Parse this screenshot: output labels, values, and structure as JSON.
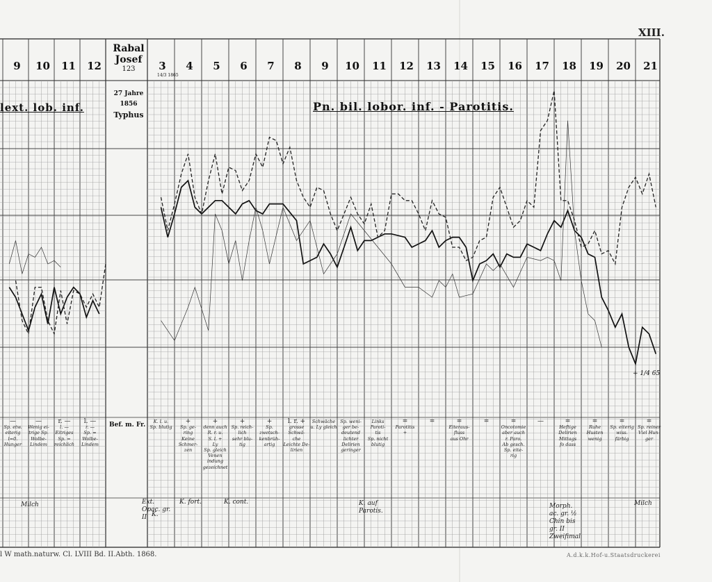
{
  "plate": {
    "number": "XIII.",
    "footer_left": "l W math.naturw. Cl. LVIII Bd. II.Abth. 1868.",
    "footer_right": "A.d.k.k.Hof-u.Staatsdruckerei"
  },
  "patient": {
    "name": "Rabal Josef",
    "number": "123",
    "age": "27 Jahre",
    "year": "1856",
    "disease": "Typhus",
    "first_day_label": "3",
    "first_day_sub": "14/3 1865"
  },
  "diagnosis": {
    "left": "lext. lob. inf.",
    "main": "Pn. bil. lobor. inf. - Parotitis."
  },
  "bef_label": "Bef. m. Fr.",
  "chart_data": {
    "type": "line",
    "title": "",
    "xlabel": "",
    "ylabel": "",
    "day_labels_left": [
      "9",
      "10",
      "11",
      "12"
    ],
    "day_labels_right": [
      "3",
      "4",
      "5",
      "6",
      "7",
      "8",
      "9",
      "10",
      "11",
      "12",
      "13",
      "14",
      "15",
      "16",
      "17",
      "18",
      "19",
      "20",
      "21"
    ],
    "ylim": [
      0,
      1
    ],
    "y_note": "vertical axis unlabeled; values as fraction of plot height (0 = bottom, 1 = top)",
    "series": [
      {
        "style": "solid",
        "x": [
          3.0,
          3.25,
          3.5,
          3.75,
          4.0,
          4.25,
          4.5,
          4.75,
          5.0,
          5.25,
          5.5,
          5.75,
          6.0,
          6.25,
          6.5,
          6.75,
          7.0,
          7.5,
          8.0,
          8.25,
          8.5,
          8.75,
          9.0,
          9.25,
          9.5,
          9.75,
          10.0,
          10.25,
          10.5,
          10.75,
          11.0,
          11.25,
          11.5,
          12.0,
          12.25,
          12.5,
          12.75,
          13.0,
          13.25,
          13.5,
          13.75,
          14.0,
          14.25,
          14.5,
          14.75,
          15.0,
          15.25,
          15.5,
          15.75,
          16.0,
          16.25,
          16.5,
          16.75,
          17.0,
          17.25,
          17.5,
          17.75,
          18.0,
          18.25,
          18.5,
          18.75,
          19.0,
          19.25,
          19.5,
          19.75,
          20.0,
          20.25,
          20.5,
          20.75,
          21.0,
          21.25
        ],
        "y": [
          0.62,
          0.53,
          0.6,
          0.68,
          0.7,
          0.62,
          0.6,
          0.62,
          0.64,
          0.64,
          0.62,
          0.6,
          0.63,
          0.64,
          0.61,
          0.6,
          0.63,
          0.63,
          0.58,
          0.45,
          0.46,
          0.47,
          0.51,
          0.48,
          0.44,
          0.5,
          0.56,
          0.49,
          0.52,
          0.52,
          0.53,
          0.54,
          0.54,
          0.53,
          0.5,
          0.51,
          0.52,
          0.55,
          0.5,
          0.52,
          0.53,
          0.53,
          0.5,
          0.4,
          0.45,
          0.46,
          0.48,
          0.44,
          0.48,
          0.47,
          0.47,
          0.51,
          0.5,
          0.49,
          0.54,
          0.58,
          0.56,
          0.61,
          0.55,
          0.53,
          0.48,
          0.47,
          0.35,
          0.31,
          0.26,
          0.3,
          0.2,
          0.15,
          0.26,
          0.24,
          0.18
        ]
      },
      {
        "style": "dashed",
        "x": [
          3.0,
          3.25,
          3.5,
          3.75,
          4.0,
          4.25,
          4.5,
          4.75,
          5.0,
          5.25,
          5.5,
          5.75,
          6.0,
          6.25,
          6.5,
          6.75,
          7.0,
          7.25,
          7.5,
          7.75,
          8.0,
          8.25,
          8.5,
          8.75,
          9.0,
          9.25,
          9.5,
          9.75,
          10.0,
          10.25,
          10.5,
          10.75,
          11.0,
          11.25,
          11.5,
          11.75,
          12.0,
          12.25,
          12.5,
          12.75,
          13.0,
          13.25,
          13.5,
          13.75,
          14.0,
          14.25,
          14.5,
          14.75,
          15.0,
          15.25,
          15.5,
          15.75,
          16.0,
          16.25,
          16.5,
          16.75,
          17.0,
          17.25,
          17.5,
          17.75,
          18.0,
          18.25,
          18.5,
          18.75,
          19.0,
          19.25,
          19.5,
          19.75,
          20.0,
          20.25,
          20.5,
          20.75,
          21.0,
          21.25
        ],
        "y": [
          0.65,
          0.55,
          0.63,
          0.72,
          0.78,
          0.65,
          0.6,
          0.7,
          0.78,
          0.66,
          0.74,
          0.73,
          0.67,
          0.7,
          0.78,
          0.74,
          0.83,
          0.82,
          0.75,
          0.8,
          0.7,
          0.65,
          0.62,
          0.68,
          0.67,
          0.6,
          0.55,
          0.6,
          0.65,
          0.6,
          0.57,
          0.63,
          0.53,
          0.55,
          0.66,
          0.66,
          0.64,
          0.64,
          0.6,
          0.55,
          0.64,
          0.6,
          0.59,
          0.5,
          0.5,
          0.46,
          0.47,
          0.52,
          0.53,
          0.65,
          0.68,
          0.62,
          0.56,
          0.58,
          0.64,
          0.62,
          0.85,
          0.88,
          0.97,
          0.64,
          0.64,
          0.58,
          0.5,
          0.51,
          0.55,
          0.48,
          0.49,
          0.45,
          0.62,
          0.68,
          0.71,
          0.66,
          0.72,
          0.62
        ]
      },
      {
        "style": "thin",
        "x": [
          3.0,
          3.5,
          4.0,
          4.25,
          4.75,
          5.0,
          5.25,
          5.5,
          5.75,
          6.0,
          6.25,
          6.5,
          6.75,
          7.0,
          7.5,
          8.0,
          8.5,
          9.0,
          9.5,
          10.0,
          10.5,
          11.0,
          11.5,
          12.0,
          12.25,
          12.5,
          13.0,
          13.25,
          13.5,
          13.75,
          14.0,
          14.5,
          15.0,
          15.25,
          15.5,
          16.0,
          16.5,
          17.0,
          17.25,
          17.5,
          17.75,
          18.0,
          18.25,
          18.5,
          18.75,
          19.0,
          19.25
        ],
        "y": [
          0.28,
          0.22,
          0.32,
          0.38,
          0.25,
          0.6,
          0.55,
          0.45,
          0.52,
          0.4,
          0.52,
          0.62,
          0.55,
          0.45,
          0.62,
          0.52,
          0.58,
          0.42,
          0.48,
          0.6,
          0.55,
          0.5,
          0.45,
          0.38,
          0.38,
          0.38,
          0.35,
          0.4,
          0.38,
          0.42,
          0.35,
          0.36,
          0.45,
          0.43,
          0.45,
          0.38,
          0.47,
          0.46,
          0.47,
          0.46,
          0.4,
          0.88,
          0.55,
          0.4,
          0.3,
          0.28,
          0.2
        ]
      }
    ],
    "left_series": [
      {
        "style": "solid",
        "x": [
          8.75,
          9.0,
          9.25,
          9.5,
          9.75,
          10.0,
          10.25,
          10.5,
          10.75,
          11.0,
          11.25,
          11.5,
          11.75,
          12.0,
          12.25
        ],
        "y": [
          0.38,
          0.35,
          0.3,
          0.25,
          0.32,
          0.36,
          0.27,
          0.38,
          0.3,
          0.35,
          0.38,
          0.36,
          0.29,
          0.34,
          0.3
        ]
      },
      {
        "style": "dashed",
        "x": [
          9.0,
          9.25,
          9.5,
          9.75,
          10.0,
          10.25,
          10.5,
          10.75,
          11.0,
          11.25,
          11.5,
          11.75,
          12.0,
          12.25,
          12.5
        ],
        "y": [
          0.4,
          0.28,
          0.24,
          0.38,
          0.38,
          0.28,
          0.24,
          0.37,
          0.27,
          0.37,
          0.36,
          0.32,
          0.36,
          0.32,
          0.45
        ]
      },
      {
        "style": "thin",
        "x": [
          8.75,
          9.0,
          9.25,
          9.5,
          9.75,
          10.0,
          10.25,
          10.5,
          10.75
        ],
        "y": [
          0.45,
          0.52,
          0.42,
          0.48,
          0.47,
          0.5,
          0.45,
          0.46,
          0.44
        ]
      }
    ],
    "end_annotation": "+ 1/4 65"
  },
  "chart_annotations": [
    {
      "text": "Pn. bil. lobor. inf. - Parotitis.",
      "kind": "diagnosis"
    }
  ],
  "notes": [
    {
      "col": 4,
      "mark": "",
      "lines": [
        "K. l. u.",
        "Sp. blutig"
      ]
    },
    {
      "col": 5,
      "mark": "+",
      "lines": [
        "Sp. ge-",
        "ring",
        "Keine",
        "Schmer-",
        "zen"
      ]
    },
    {
      "col": 6,
      "mark": "+",
      "lines": [
        "denn auch",
        "R. r. u.",
        "S. l. +",
        "Ly",
        "Sp. gleich",
        "Venen",
        "indung",
        "gezeichnet"
      ]
    },
    {
      "col": 7,
      "mark": "+",
      "lines": [
        "Sp. reich-",
        "lich",
        "sehr blu-",
        "tig"
      ]
    },
    {
      "col": 8,
      "mark": "+",
      "lines": [
        "Sp. zwetsch-",
        "kenbrüh-",
        "artig"
      ]
    },
    {
      "col": 9,
      "mark": "l. r. +",
      "lines": [
        "grosse",
        "Schwä-",
        "che",
        "Leichte De-",
        "lirien"
      ]
    },
    {
      "col": 10,
      "mark": "",
      "lines": [
        "Schwäche",
        "u. Ly gleich"
      ]
    },
    {
      "col": 11,
      "mark": "",
      "lines": [
        "Sp. weni-",
        "ger be-",
        "deutend",
        "lichter",
        "Delirien",
        "geringer"
      ]
    },
    {
      "col": 12,
      "mark": "",
      "lines": [
        "Links",
        "Paroti-",
        "tis",
        "Sp. nicht",
        "blutig"
      ]
    },
    {
      "col": 13,
      "mark": "=",
      "lines": [
        "Parotitis",
        "+"
      ]
    },
    {
      "col": 14,
      "mark": "=",
      "lines": []
    },
    {
      "col": 15,
      "mark": "=",
      "lines": [
        "Eiteraus-",
        "fluss",
        "aus Ohr"
      ]
    },
    {
      "col": 16,
      "mark": "=",
      "lines": []
    },
    {
      "col": 17,
      "mark": "=",
      "lines": [
        "Oncotomie",
        "aber auch",
        "r. Paro.",
        "Ab gesch.",
        "Sp. eite-",
        "rig"
      ]
    },
    {
      "col": 18,
      "mark": "—",
      "lines": []
    },
    {
      "col": 19,
      "mark": "=",
      "lines": [
        "Heftige",
        "Delirien",
        "Mittags",
        "fo dass"
      ]
    },
    {
      "col": 20,
      "mark": "=",
      "lines": [
        "Ruhe",
        "Husten",
        "wenig"
      ]
    },
    {
      "col": 21,
      "mark": "=",
      "lines": [
        "Sp. eiterig",
        "wiss.",
        "färbig"
      ]
    },
    {
      "col": 22,
      "mark": "=",
      "lines": [
        "Sp. reiner",
        "Viel Hun-",
        "ger"
      ]
    }
  ],
  "left_notes": [
    {
      "x": 0,
      "mark": "—",
      "lines": [
        "Sp. etw.",
        "eiterig",
        "",
        "l=0.",
        "",
        "Hunger"
      ]
    },
    {
      "x": 1,
      "mark": "—",
      "lines": [
        "Wenig ei-",
        "trige Sp.",
        "",
        "Wolbe-",
        "Lindem"
      ]
    },
    {
      "x": 2,
      "mark": "r. —",
      "lines": [
        "l. —",
        "Eitriges",
        "Sp. =",
        "reichlich"
      ]
    },
    {
      "x": 3,
      "mark": "l. —",
      "lines": [
        "r. —",
        "Sp. =",
        "Wolbe-",
        "Lindem"
      ]
    }
  ],
  "diet": [
    {
      "text": "Milch",
      "where": "left"
    },
    {
      "text": "Ext. Opac. gr. II",
      "where": "d4"
    },
    {
      "text": "K.",
      "where": "d4b"
    },
    {
      "text": "K. fort.",
      "where": "d5"
    },
    {
      "text": "K. cont.",
      "where": "d7"
    },
    {
      "text": "K. auf Parotis.",
      "where": "d12"
    },
    {
      "text": "Morph. ac. gr. ½ Chin bis gr. II Zweifimal",
      "where": "d19"
    },
    {
      "text": "Milch",
      "where": "d22"
    }
  ]
}
